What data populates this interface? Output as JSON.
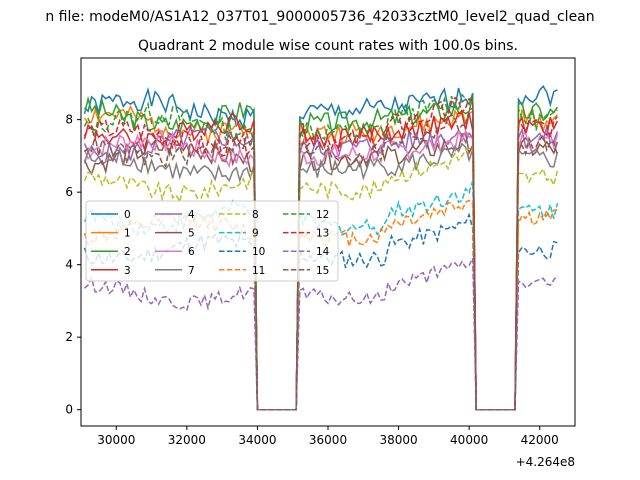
{
  "chart_data": {
    "type": "line",
    "suptitle": "n file: modeM0/AS1A12_037T01_9000005736_42033cztM0_level2_quad_clean",
    "title": "Quadrant 2 module wise count rates with 100.0s bins.",
    "xlabel": "",
    "ylabel": "",
    "x_offset_label": "+4.264e8",
    "xlim": [
      29000,
      43000
    ],
    "ylim": [
      -0.45,
      9.7
    ],
    "xticks": [
      30000,
      32000,
      34000,
      36000,
      38000,
      40000,
      42000
    ],
    "xtick_labels": [
      "30000",
      "32000",
      "34000",
      "36000",
      "38000",
      "40000",
      "42000"
    ],
    "yticks": [
      0,
      2,
      4,
      6,
      8
    ],
    "ytick_labels": [
      "0",
      "2",
      "4",
      "6",
      "8"
    ],
    "x_start": 29100,
    "x_end": 42500,
    "bin_seconds": 100,
    "gaps": [
      [
        33900,
        35200
      ],
      [
        40100,
        41400
      ]
    ],
    "legend_location": "center-left",
    "series": [
      {
        "name": "0",
        "color": "#1f77b4",
        "dash": "solid",
        "level_seg1": 8.3,
        "level_seg2": 8.2,
        "level_seg3": 8.7,
        "noise": 0.3
      },
      {
        "name": "1",
        "color": "#ff7f0e",
        "dash": "solid",
        "level_seg1": 7.9,
        "level_seg2": 7.6,
        "level_seg3": 8.0,
        "noise": 0.3
      },
      {
        "name": "2",
        "color": "#2ca02c",
        "dash": "solid",
        "level_seg1": 8.1,
        "level_seg2": 7.9,
        "level_seg3": 8.2,
        "noise": 0.3
      },
      {
        "name": "3",
        "color": "#d62728",
        "dash": "solid",
        "level_seg1": 7.7,
        "level_seg2": 7.5,
        "level_seg3": 7.8,
        "noise": 0.3
      },
      {
        "name": "4",
        "color": "#9467bd",
        "dash": "solid",
        "level_seg1": 7.3,
        "level_seg2": 7.2,
        "level_seg3": 7.5,
        "noise": 0.3
      },
      {
        "name": "5",
        "color": "#8c564b",
        "dash": "solid",
        "level_seg1": 7.0,
        "level_seg2": 6.9,
        "level_seg3": 7.2,
        "noise": 0.3
      },
      {
        "name": "6",
        "color": "#e377c2",
        "dash": "solid",
        "level_seg1": 7.2,
        "level_seg2": 7.0,
        "level_seg3": 7.4,
        "noise": 0.3
      },
      {
        "name": "7",
        "color": "#7f7f7f",
        "dash": "solid",
        "level_seg1": 6.7,
        "level_seg2": 6.6,
        "level_seg3": 6.9,
        "noise": 0.3
      },
      {
        "name": "8",
        "color": "#bcbd22",
        "dash": "dashed",
        "level_seg1": 6.2,
        "level_seg2": 6.2,
        "level_seg3": 6.4,
        "noise": 0.25
      },
      {
        "name": "9",
        "color": "#17becf",
        "dash": "dashed",
        "level_seg1": 5.3,
        "level_seg2": 5.2,
        "level_seg3": 5.5,
        "noise": 0.25
      },
      {
        "name": "10",
        "color": "#1f77b4",
        "dash": "dashed",
        "level_seg1": 4.4,
        "level_seg2": 4.3,
        "level_seg3": 4.4,
        "noise": 0.25
      },
      {
        "name": "11",
        "color": "#ff7f0e",
        "dash": "dashed",
        "level_seg1": 5.0,
        "level_seg2": 4.9,
        "level_seg3": 5.3,
        "noise": 0.25
      },
      {
        "name": "12",
        "color": "#2ca02c",
        "dash": "dashed",
        "level_seg1": 7.9,
        "level_seg2": 7.8,
        "level_seg3": 8.0,
        "noise": 0.3
      },
      {
        "name": "13",
        "color": "#d62728",
        "dash": "dashed",
        "level_seg1": 7.5,
        "level_seg2": 7.6,
        "level_seg3": 7.8,
        "noise": 0.3
      },
      {
        "name": "14",
        "color": "#9467bd",
        "dash": "dashed",
        "level_seg1": 3.2,
        "level_seg2": 3.2,
        "level_seg3": 3.5,
        "noise": 0.2
      },
      {
        "name": "15",
        "color": "#8c564b",
        "dash": "dashed",
        "level_seg1": 7.2,
        "level_seg2": 7.2,
        "level_seg3": 7.3,
        "noise": 0.3
      }
    ]
  }
}
